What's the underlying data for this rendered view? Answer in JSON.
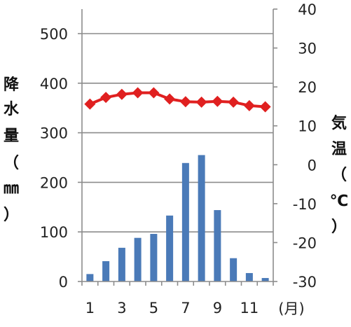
{
  "chart_data": {
    "type": "bar+line",
    "x": [
      1,
      2,
      3,
      4,
      5,
      6,
      7,
      8,
      9,
      10,
      11,
      12
    ],
    "x_tick_labels": [
      "1",
      "3",
      "5",
      "7",
      "9",
      "11"
    ],
    "x_unit": "(月)",
    "precipitation": {
      "type": "bar",
      "axis": "left",
      "values": [
        15,
        41,
        68,
        88,
        96,
        133,
        239,
        255,
        144,
        47,
        17,
        7
      ],
      "color": "#4A7AB8"
    },
    "temperature": {
      "type": "line",
      "axis": "right",
      "values": [
        15.6,
        17.3,
        18.1,
        18.5,
        18.5,
        16.9,
        16.2,
        16.1,
        16.3,
        16.1,
        15.2,
        14.9
      ],
      "color": "#E02020",
      "marker": "diamond"
    },
    "y_left": {
      "label_chars": [
        "降",
        "水",
        "量",
        "（",
        "㎜",
        "）"
      ],
      "ylim": [
        0,
        550
      ],
      "ticks": [
        0,
        100,
        200,
        300,
        400,
        500
      ]
    },
    "y_right": {
      "label_chars": [
        "気",
        "温",
        "（",
        "℃",
        "）"
      ],
      "ylim": [
        -30,
        40
      ],
      "ticks": [
        -30,
        -20,
        -10,
        0,
        10,
        20,
        30,
        40
      ]
    },
    "grid": true,
    "legend": "none"
  }
}
